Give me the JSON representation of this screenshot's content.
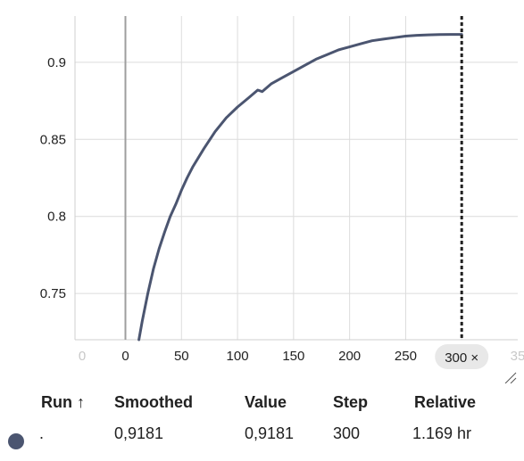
{
  "colors": {
    "series": "#4b5570",
    "marker": "#212121",
    "grid": "#dcdcdc",
    "zero_axis": "#9e9e9e"
  },
  "chart_data": {
    "type": "line",
    "title": "",
    "xlabel": "",
    "ylabel": "",
    "xlim": [
      -45,
      350
    ],
    "ylim": [
      0.72,
      0.93
    ],
    "x_ticks": [
      "0",
      "0",
      "50",
      "100",
      "150",
      "200",
      "250",
      "300",
      "35"
    ],
    "y_ticks": [
      "0.75",
      "0.8",
      "0.85",
      "0.9"
    ],
    "grid": true,
    "series": [
      {
        "x": [
          12,
          15,
          20,
          25,
          30,
          35,
          40,
          45,
          50,
          55,
          60,
          70,
          80,
          90,
          100,
          110,
          118,
          122,
          130,
          140,
          150,
          160,
          170,
          180,
          190,
          200,
          210,
          220,
          230,
          240,
          250,
          260,
          270,
          280,
          290,
          300
        ],
        "y": [
          0.72,
          0.732,
          0.75,
          0.766,
          0.779,
          0.79,
          0.8,
          0.808,
          0.817,
          0.825,
          0.832,
          0.844,
          0.855,
          0.864,
          0.871,
          0.877,
          0.882,
          0.881,
          0.886,
          0.89,
          0.894,
          0.898,
          0.902,
          0.905,
          0.908,
          0.91,
          0.912,
          0.914,
          0.915,
          0.916,
          0.917,
          0.9175,
          0.9178,
          0.918,
          0.9181,
          0.9181
        ]
      }
    ],
    "marker": {
      "x": 300,
      "label": "300 ×"
    }
  },
  "table": {
    "headers": {
      "run": "Run ↑",
      "smoothed": "Smoothed",
      "value": "Value",
      "step": "Step",
      "relative": "Relative"
    },
    "rows": [
      {
        "run": ".",
        "smoothed": "0,9181",
        "value": "0,9181",
        "step": "300",
        "relative": "1.169 hr"
      }
    ]
  }
}
